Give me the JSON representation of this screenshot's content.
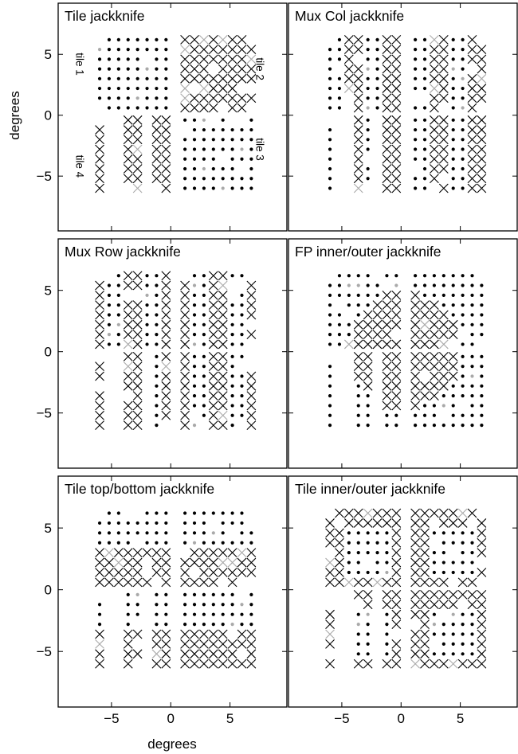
{
  "figure": {
    "xlabel": "degrees",
    "ylabel": "degrees"
  },
  "chart_data": {
    "type": "scatter",
    "xlim": [
      -9.5,
      9.8
    ],
    "ylim": [
      -9.5,
      9.2
    ],
    "xticks": [
      -5,
      0,
      5
    ],
    "yticks": [
      5,
      0,
      -5
    ],
    "tick_labels": {
      "x": [
        "−5",
        "0",
        "5"
      ],
      "y": [
        "5",
        "0",
        "−5"
      ]
    },
    "legend": "none",
    "grid": false,
    "markers": {
      "dot": "black dot",
      "cross": "black x",
      "gray_dot": "gray dot",
      "gray_cross": "gray x"
    },
    "colors": {
      "black": "#000000",
      "gray": "#a9a9a9"
    },
    "tile_labels": [
      "tile 1",
      "tile 2",
      "tile 3",
      "tile 4"
    ],
    "tile_grid_spacing_deg": 0.8,
    "tiles": [
      {
        "name": "tile 1",
        "x_center": -3.2,
        "y_center": 3.4
      },
      {
        "name": "tile 2",
        "x_center": 4.0,
        "y_center": 3.4
      },
      {
        "name": "tile 3",
        "x_center": 4.0,
        "y_center": -3.2
      },
      {
        "name": "tile 4",
        "x_center": -3.2,
        "y_center": -3.2
      }
    ],
    "panels": [
      {
        "title": "Tile jackknife",
        "split": "tile",
        "cross_tiles": [
          "tile 2",
          "tile 4"
        ]
      },
      {
        "title": "Mux Col jackknife",
        "split": "mux column",
        "cross_groups": "alternating column pairs"
      },
      {
        "title": "Mux Row jackknife",
        "split": "mux row",
        "cross_groups": "alternating column pairs"
      },
      {
        "title": "FP inner/outer jackknife",
        "split": "focal plane inner/outer",
        "cross_groups": "inner"
      },
      {
        "title": "Tile top/bottom jackknife",
        "split": "tile top/bottom",
        "cross_groups": "lower half of each tile"
      },
      {
        "title": "Tile inner/outer jackknife",
        "split": "tile inner/outer",
        "cross_groups": "outer ring of each tile"
      }
    ]
  }
}
